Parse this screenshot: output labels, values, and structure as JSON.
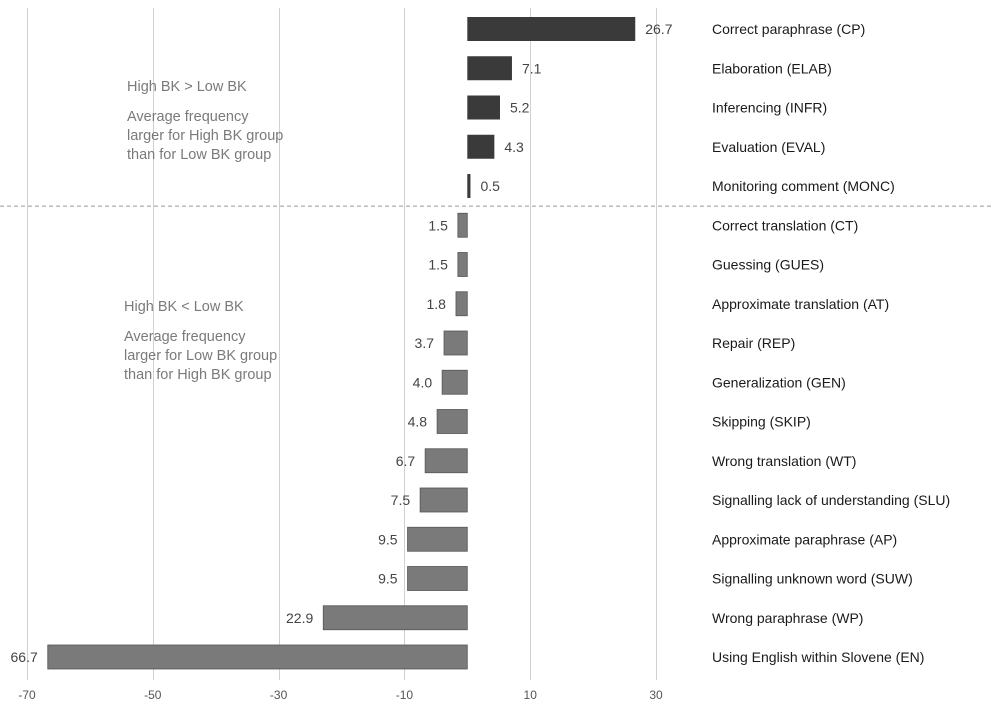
{
  "chart_data": {
    "type": "bar",
    "orientation": "horizontal",
    "categories": [
      "Correct paraphrase (CP)",
      "Elaboration (ELAB)",
      "Inferencing (INFR)",
      "Evaluation (EVAL)",
      "Monitoring comment (MONC)",
      "Correct translation (CT)",
      "Guessing (GUES)",
      "Approximate translation (AT)",
      "Repair (REP)",
      "Generalization (GEN)",
      "Skipping (SKIP)",
      "Wrong translation (WT)",
      "Signalling lack of understanding (SLU)",
      "Approximate paraphrase (AP)",
      "Signalling unknown word (SUW)",
      "Wrong paraphrase (WP)",
      "Using English within Slovene (EN)"
    ],
    "values": [
      26.7,
      7.1,
      5.2,
      4.3,
      0.5,
      -1.5,
      -1.5,
      -1.8,
      -3.7,
      -4.0,
      -4.8,
      -6.7,
      -7.5,
      -9.5,
      -9.5,
      -22.9,
      -66.7
    ],
    "value_labels": [
      "26.7",
      "7.1",
      "5.2",
      "4.3",
      "0.5",
      "1.5",
      "1.5",
      "1.8",
      "3.7",
      "4.0",
      "4.8",
      "6.7",
      "7.5",
      "9.5",
      "9.5",
      "22.9",
      "66.7"
    ],
    "xlim": [
      -70,
      30
    ],
    "x_ticks": [
      -70,
      -50,
      -30,
      -10,
      10,
      30
    ],
    "x_tick_labels": [
      "-70",
      "-50",
      "-30",
      "-10",
      "10",
      "30"
    ],
    "grid": true,
    "colors": {
      "positive": "#3a3a3a",
      "negative": "#7a7a7a",
      "grid": "#d0d0d0",
      "note_text": "#7a7a7a"
    },
    "annotations": {
      "upper": {
        "heading": "High BK > Low BK",
        "lines": [
          "Average frequency",
          "larger for High BK group",
          "than for Low BK group"
        ]
      },
      "lower": {
        "heading": "High BK < Low BK",
        "lines": [
          "Average frequency",
          "larger for Low BK group",
          "than for High BK group"
        ]
      }
    }
  }
}
